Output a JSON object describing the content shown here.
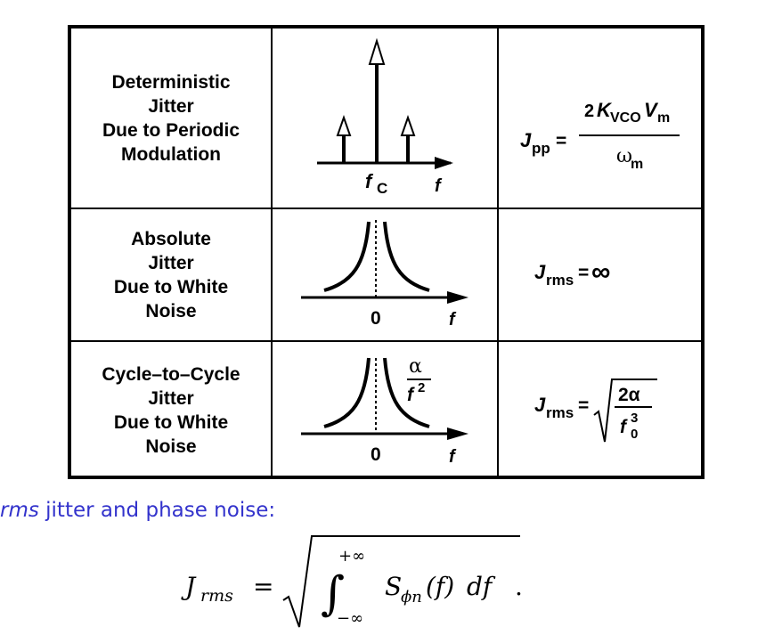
{
  "rows": [
    {
      "label_lines": [
        "Deterministic",
        "Jitter",
        "Due to Periodic",
        "Modulation"
      ],
      "plot": {
        "carrier_label": "f",
        "carrier_sub": "C",
        "axis_label": "f"
      },
      "formula": {
        "lhs": "J",
        "lhs_sub": "pp",
        "eq": "=",
        "num_coef": "2",
        "num_k": "K",
        "num_k_sub": "VCO",
        "num_v": "V",
        "num_v_sub": "m",
        "den": "ω",
        "den_sub": "m"
      }
    },
    {
      "label_lines": [
        "Absolute",
        "Jitter",
        "Due to White",
        "Noise"
      ],
      "plot": {
        "origin_label": "0",
        "axis_label": "f"
      },
      "formula": {
        "lhs": "J",
        "lhs_sub": "rms",
        "eq": "=",
        "rhs": "∞"
      }
    },
    {
      "label_lines": [
        "Cycle–to–Cycle",
        "Jitter",
        "Due to White",
        "Noise"
      ],
      "plot": {
        "origin_label": "0",
        "axis_label": "f",
        "curve_num": "α",
        "curve_den": "f",
        "curve_den_sup": "2"
      },
      "formula": {
        "lhs": "J",
        "lhs_sub": "rms",
        "eq": "=",
        "num": "2α",
        "den": "f",
        "den_sub": "0",
        "den_sup": "3"
      }
    }
  ],
  "caption": {
    "emphasis": "rms",
    "rest": " jitter and phase noise:"
  },
  "equation": {
    "lhs": "J",
    "lhs_sub": "rms",
    "eq": "=",
    "lower": "−∞",
    "upper": "+∞",
    "integrand": "S",
    "integrand_sub": "ϕn",
    "arg": "(f)",
    "diff": "df",
    "period": "."
  }
}
